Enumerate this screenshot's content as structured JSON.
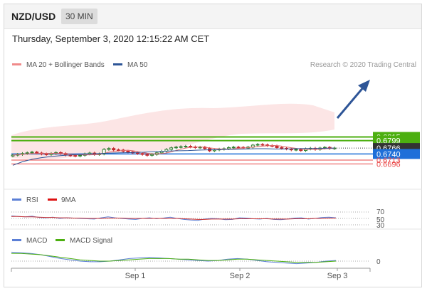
{
  "header": {
    "pair": "NZD/USD",
    "timeframe": "30 MIN",
    "datetime": "Thursday, September 3, 2020 12:15:22 AM CET"
  },
  "main_panel": {
    "legend": [
      {
        "label": "MA 20 + Bollinger Bands",
        "color": "#f08a8a"
      },
      {
        "label": "MA 50",
        "color": "#2e5597"
      }
    ],
    "credit": "Research © 2020 Trading Central"
  },
  "colors": {
    "resistance": "#4caf10",
    "support": "#1e6fd9",
    "target_low": "#e94646",
    "current": "#333333",
    "arrow": "#2e5597",
    "candle_up": "#2f7d2f",
    "candle_down": "#c4282c"
  },
  "chart_data": [
    {
      "type": "line",
      "title": "NZD/USD 30 MIN",
      "x_ticks": [
        "Sep 1",
        "Sep 2",
        "Sep 3"
      ],
      "price_levels": [
        {
          "value": 0.6815,
          "label": "0.6815",
          "kind": "resistance"
        },
        {
          "value": 0.6799,
          "label": "0.6799",
          "kind": "resistance"
        },
        {
          "value": 0.6766,
          "label": "0.6766",
          "kind": "current"
        },
        {
          "value": 0.674,
          "label": "0.6740",
          "kind": "support"
        },
        {
          "value": 0.6713,
          "label": "0.6713",
          "kind": "target"
        },
        {
          "value": 0.6696,
          "label": "0.6696",
          "kind": "target"
        }
      ],
      "series": [
        {
          "name": "Close",
          "values": [
            0.6735,
            0.6738,
            0.6742,
            0.6745,
            0.6748,
            0.6744,
            0.674,
            0.6738,
            0.6742,
            0.6746,
            0.6742,
            0.6735,
            0.6733,
            0.6731,
            0.6734,
            0.674,
            0.6744,
            0.6738,
            0.674,
            0.676,
            0.6764,
            0.6758,
            0.6757,
            0.6752,
            0.6749,
            0.6745,
            0.6742,
            0.6738,
            0.6734,
            0.6738,
            0.6745,
            0.6752,
            0.676,
            0.6767,
            0.677,
            0.6772,
            0.6774,
            0.6771,
            0.6768,
            0.677,
            0.6764,
            0.6754,
            0.6758,
            0.6761,
            0.6763,
            0.6768,
            0.677,
            0.6769,
            0.6766,
            0.677,
            0.6779,
            0.6782,
            0.678,
            0.6777,
            0.6775,
            0.6768,
            0.6765,
            0.6762,
            0.6758,
            0.676,
            0.6755,
            0.6762,
            0.6765,
            0.676,
            0.6766,
            0.6769,
            0.6764,
            0.6766
          ]
        },
        {
          "name": "MA 50",
          "values": [
            0.669,
            0.6706,
            0.6717,
            0.6724,
            0.6729,
            0.6733,
            0.6736,
            0.6738,
            0.674,
            0.6742,
            0.6744,
            0.6745,
            0.6746,
            0.6747,
            0.6749,
            0.6751,
            0.6753,
            0.6754,
            0.6755,
            0.6757,
            0.6758,
            0.6759,
            0.676,
            0.6761,
            0.6762,
            0.6763,
            0.6763,
            0.6762,
            0.6762,
            0.6763,
            0.6764,
            0.6764,
            0.6765,
            0.6766
          ]
        }
      ]
    },
    {
      "type": "line",
      "title": "RSI",
      "legend": [
        "RSI",
        "9MA"
      ],
      "y_ticks": [
        70,
        50,
        30
      ],
      "series": [
        {
          "name": "RSI",
          "values": [
            58,
            56,
            55,
            57,
            53,
            52,
            54,
            50,
            52,
            51,
            50,
            49,
            48,
            52,
            55,
            52,
            50,
            48,
            47,
            50,
            52,
            49,
            51,
            54,
            50,
            47,
            45,
            44,
            48,
            50,
            49,
            46,
            47,
            52,
            51,
            49,
            48,
            50,
            47,
            46,
            48,
            51,
            52,
            48,
            50,
            53,
            54,
            52
          ]
        },
        {
          "name": "9MA",
          "values": [
            56,
            56,
            55,
            55,
            54,
            53,
            53,
            52,
            52,
            51,
            51,
            50,
            50,
            50,
            51,
            51,
            51,
            50,
            50,
            50,
            50,
            50,
            50,
            50,
            50,
            49,
            48,
            47,
            47,
            48,
            48,
            48,
            48,
            49,
            49,
            49,
            49,
            49,
            48,
            48,
            48,
            49,
            49,
            49,
            50,
            50,
            51,
            51
          ]
        }
      ]
    },
    {
      "type": "line",
      "title": "MACD",
      "legend": [
        "MACD",
        "MACD Signal"
      ],
      "y_ticks": [
        0
      ],
      "series": [
        {
          "name": "MACD",
          "values": [
            14,
            13,
            12,
            10,
            7,
            4,
            2,
            0,
            -1,
            -1,
            0,
            2,
            4,
            5,
            6,
            5,
            4,
            3,
            2,
            1,
            0,
            1,
            3,
            4,
            3,
            1,
            -1,
            -2,
            -3,
            -4,
            -3,
            -2,
            0,
            1
          ]
        },
        {
          "name": "MACD Signal",
          "values": [
            12,
            12,
            11,
            10,
            8,
            6,
            4,
            2,
            1,
            0,
            0,
            1,
            2,
            3,
            4,
            4,
            4,
            3,
            3,
            2,
            1,
            1,
            2,
            3,
            3,
            2,
            1,
            0,
            -1,
            -2,
            -2,
            -2,
            -1,
            0
          ]
        }
      ]
    }
  ]
}
